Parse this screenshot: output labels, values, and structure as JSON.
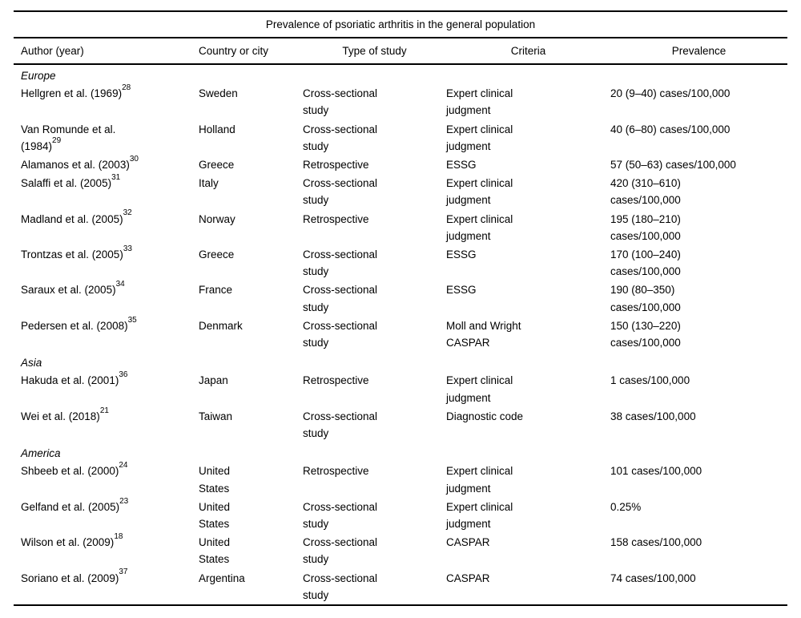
{
  "title": "Prevalence of psoriatic arthritis in the general population",
  "columns": {
    "author": "Author (year)",
    "country": "Country or city",
    "type": "Type of study",
    "criteria": "Criteria",
    "prevalence": "Prevalence"
  },
  "sections": [
    {
      "label": "Europe",
      "rows": [
        {
          "author": "Hellgren et al. (1969)",
          "ref": "28",
          "country": "Sweden",
          "type": "Cross-sectional\nstudy",
          "criteria": "Expert clinical\njudgment",
          "prevalence": "20 (9–40) cases/100,000"
        },
        {
          "author": "Van Romunde et al.\n(1984)",
          "ref": "29",
          "country": "Holland",
          "type": "Cross-sectional\nstudy",
          "criteria": "Expert clinical\njudgment",
          "prevalence": "40 (6–80) cases/100,000"
        },
        {
          "author": "Alamanos et al. (2003)",
          "ref": "30",
          "country": "Greece",
          "type": "Retrospective",
          "criteria": "ESSG",
          "prevalence": "57 (50–63) cases/100,000"
        },
        {
          "author": "Salaffi et al. (2005)",
          "ref": "31",
          "country": "Italy",
          "type": "Cross-sectional\nstudy",
          "criteria": "Expert clinical\njudgment",
          "prevalence": "420 (310–610)\ncases/100,000"
        },
        {
          "author": "Madland et al. (2005)",
          "ref": "32",
          "country": "Norway",
          "type": "Retrospective",
          "criteria": "Expert clinical\njudgment",
          "prevalence": "195 (180–210)\ncases/100,000"
        },
        {
          "author": "Trontzas et al. (2005)",
          "ref": "33",
          "country": "Greece",
          "type": "Cross-sectional\nstudy",
          "criteria": "ESSG",
          "prevalence": "170 (100–240)\ncases/100,000"
        },
        {
          "author": "Saraux et al. (2005)",
          "ref": "34",
          "country": "France",
          "type": "Cross-sectional\nstudy",
          "criteria": "ESSG",
          "prevalence": "190 (80–350)\ncases/100,000"
        },
        {
          "author": "Pedersen et al. (2008)",
          "ref": "35",
          "country": "Denmark",
          "type": "Cross-sectional\nstudy",
          "criteria": "Moll and Wright\nCASPAR",
          "prevalence": "150 (130–220)\ncases/100,000"
        }
      ]
    },
    {
      "label": "Asia",
      "rows": [
        {
          "author": "Hakuda et al. (2001)",
          "ref": "36",
          "country": "Japan",
          "type": "Retrospective",
          "criteria": "Expert clinical\njudgment",
          "prevalence": "1 cases/100,000"
        },
        {
          "author": "Wei et al. (2018)",
          "ref": "21",
          "country": "Taiwan",
          "type": "Cross-sectional\nstudy",
          "criteria": "Diagnostic code",
          "prevalence": "38 cases/100,000"
        }
      ]
    },
    {
      "label": "America",
      "rows": [
        {
          "author": "Shbeeb et al. (2000)",
          "ref": "24",
          "country": "United\nStates",
          "type": "Retrospective",
          "criteria": "Expert clinical\njudgment",
          "prevalence": "101 cases/100,000"
        },
        {
          "author": "Gelfand et al. (2005)",
          "ref": "23",
          "country": "United\nStates",
          "type": "Cross-sectional\nstudy",
          "criteria": "Expert clinical\njudgment",
          "prevalence": "0.25%"
        },
        {
          "author": "Wilson et al. (2009)",
          "ref": "18",
          "country": "United\nStates",
          "type": "Cross-sectional\nstudy",
          "criteria": "CASPAR",
          "prevalence": "158 cases/100,000"
        },
        {
          "author": "Soriano et al. (2009)",
          "ref": "37",
          "country": "Argentina",
          "type": "Cross-sectional\nstudy",
          "criteria": "CASPAR",
          "prevalence": "74 cases/100,000"
        }
      ]
    }
  ]
}
